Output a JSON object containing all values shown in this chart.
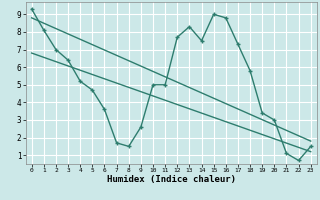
{
  "title": "",
  "xlabel": "Humidex (Indice chaleur)",
  "background_color": "#cce8e8",
  "grid_color": "#ffffff",
  "line_color": "#2e7d6e",
  "xlim": [
    -0.5,
    23.5
  ],
  "ylim": [
    0.5,
    9.7
  ],
  "xticks": [
    0,
    1,
    2,
    3,
    4,
    5,
    6,
    7,
    8,
    9,
    10,
    11,
    12,
    13,
    14,
    15,
    16,
    17,
    18,
    19,
    20,
    21,
    22,
    23
  ],
  "yticks": [
    1,
    2,
    3,
    4,
    5,
    6,
    7,
    8,
    9
  ],
  "curve1_x": [
    0,
    1,
    2,
    3,
    4,
    5,
    6,
    7,
    8,
    9,
    10,
    11,
    12,
    13,
    14,
    15,
    16,
    17,
    18,
    19,
    20,
    21,
    22,
    23
  ],
  "curve1_y": [
    9.3,
    8.1,
    7.0,
    6.4,
    5.2,
    4.7,
    3.6,
    1.7,
    1.5,
    2.6,
    5.0,
    5.0,
    7.7,
    8.3,
    7.5,
    9.0,
    8.8,
    7.3,
    5.8,
    3.4,
    3.0,
    1.1,
    0.7,
    1.5
  ],
  "curve2_x": [
    0,
    23
  ],
  "curve2_y": [
    8.8,
    1.8
  ],
  "curve3_x": [
    0,
    23
  ],
  "curve3_y": [
    6.8,
    1.2
  ],
  "marker_size": 3.5,
  "linewidth": 1.0
}
